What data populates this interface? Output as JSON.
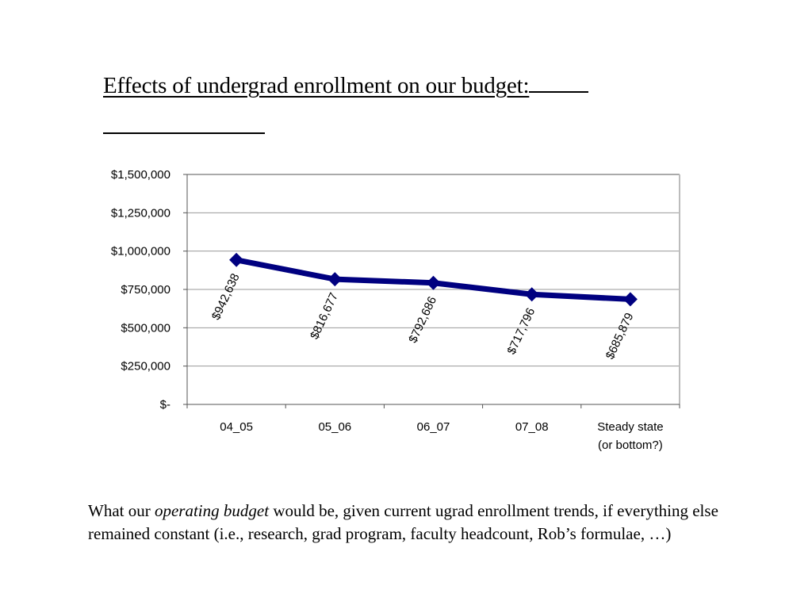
{
  "slide": {
    "title": "Effects of undergrad enrollment on our budget:",
    "caption": {
      "before": "What our ",
      "emphasis": "operating budget",
      "after": " would be, given current ugrad enrollment trends, if everything else remained constant (i.e., research, grad program, faculty headcount, Rob’s formulae, …)"
    }
  },
  "chart_data": {
    "type": "line",
    "title": "",
    "xlabel": "",
    "ylabel": "",
    "categories": [
      "04_05",
      "05_06",
      "06_07",
      "07_08",
      "Steady state\n(or bottom?)"
    ],
    "series": [
      {
        "name": "Operating budget",
        "values": [
          942638,
          816677,
          792686,
          717796,
          685879
        ],
        "labels": [
          "$942,638",
          "$816,677",
          "$792,686",
          "$717,796",
          "$685,879"
        ],
        "color": "#000080",
        "marker": "diamond"
      }
    ],
    "ylim": [
      0,
      1500000
    ],
    "yticks": [
      0,
      250000,
      500000,
      750000,
      1000000,
      1250000,
      1500000
    ],
    "ytick_labels": [
      "$-",
      "$250,000",
      "$500,000",
      "$750,000",
      "$1,000,000",
      "$1,250,000",
      "$1,500,000"
    ],
    "grid": true,
    "legend": "none",
    "data_label_rotation": "rotated"
  }
}
